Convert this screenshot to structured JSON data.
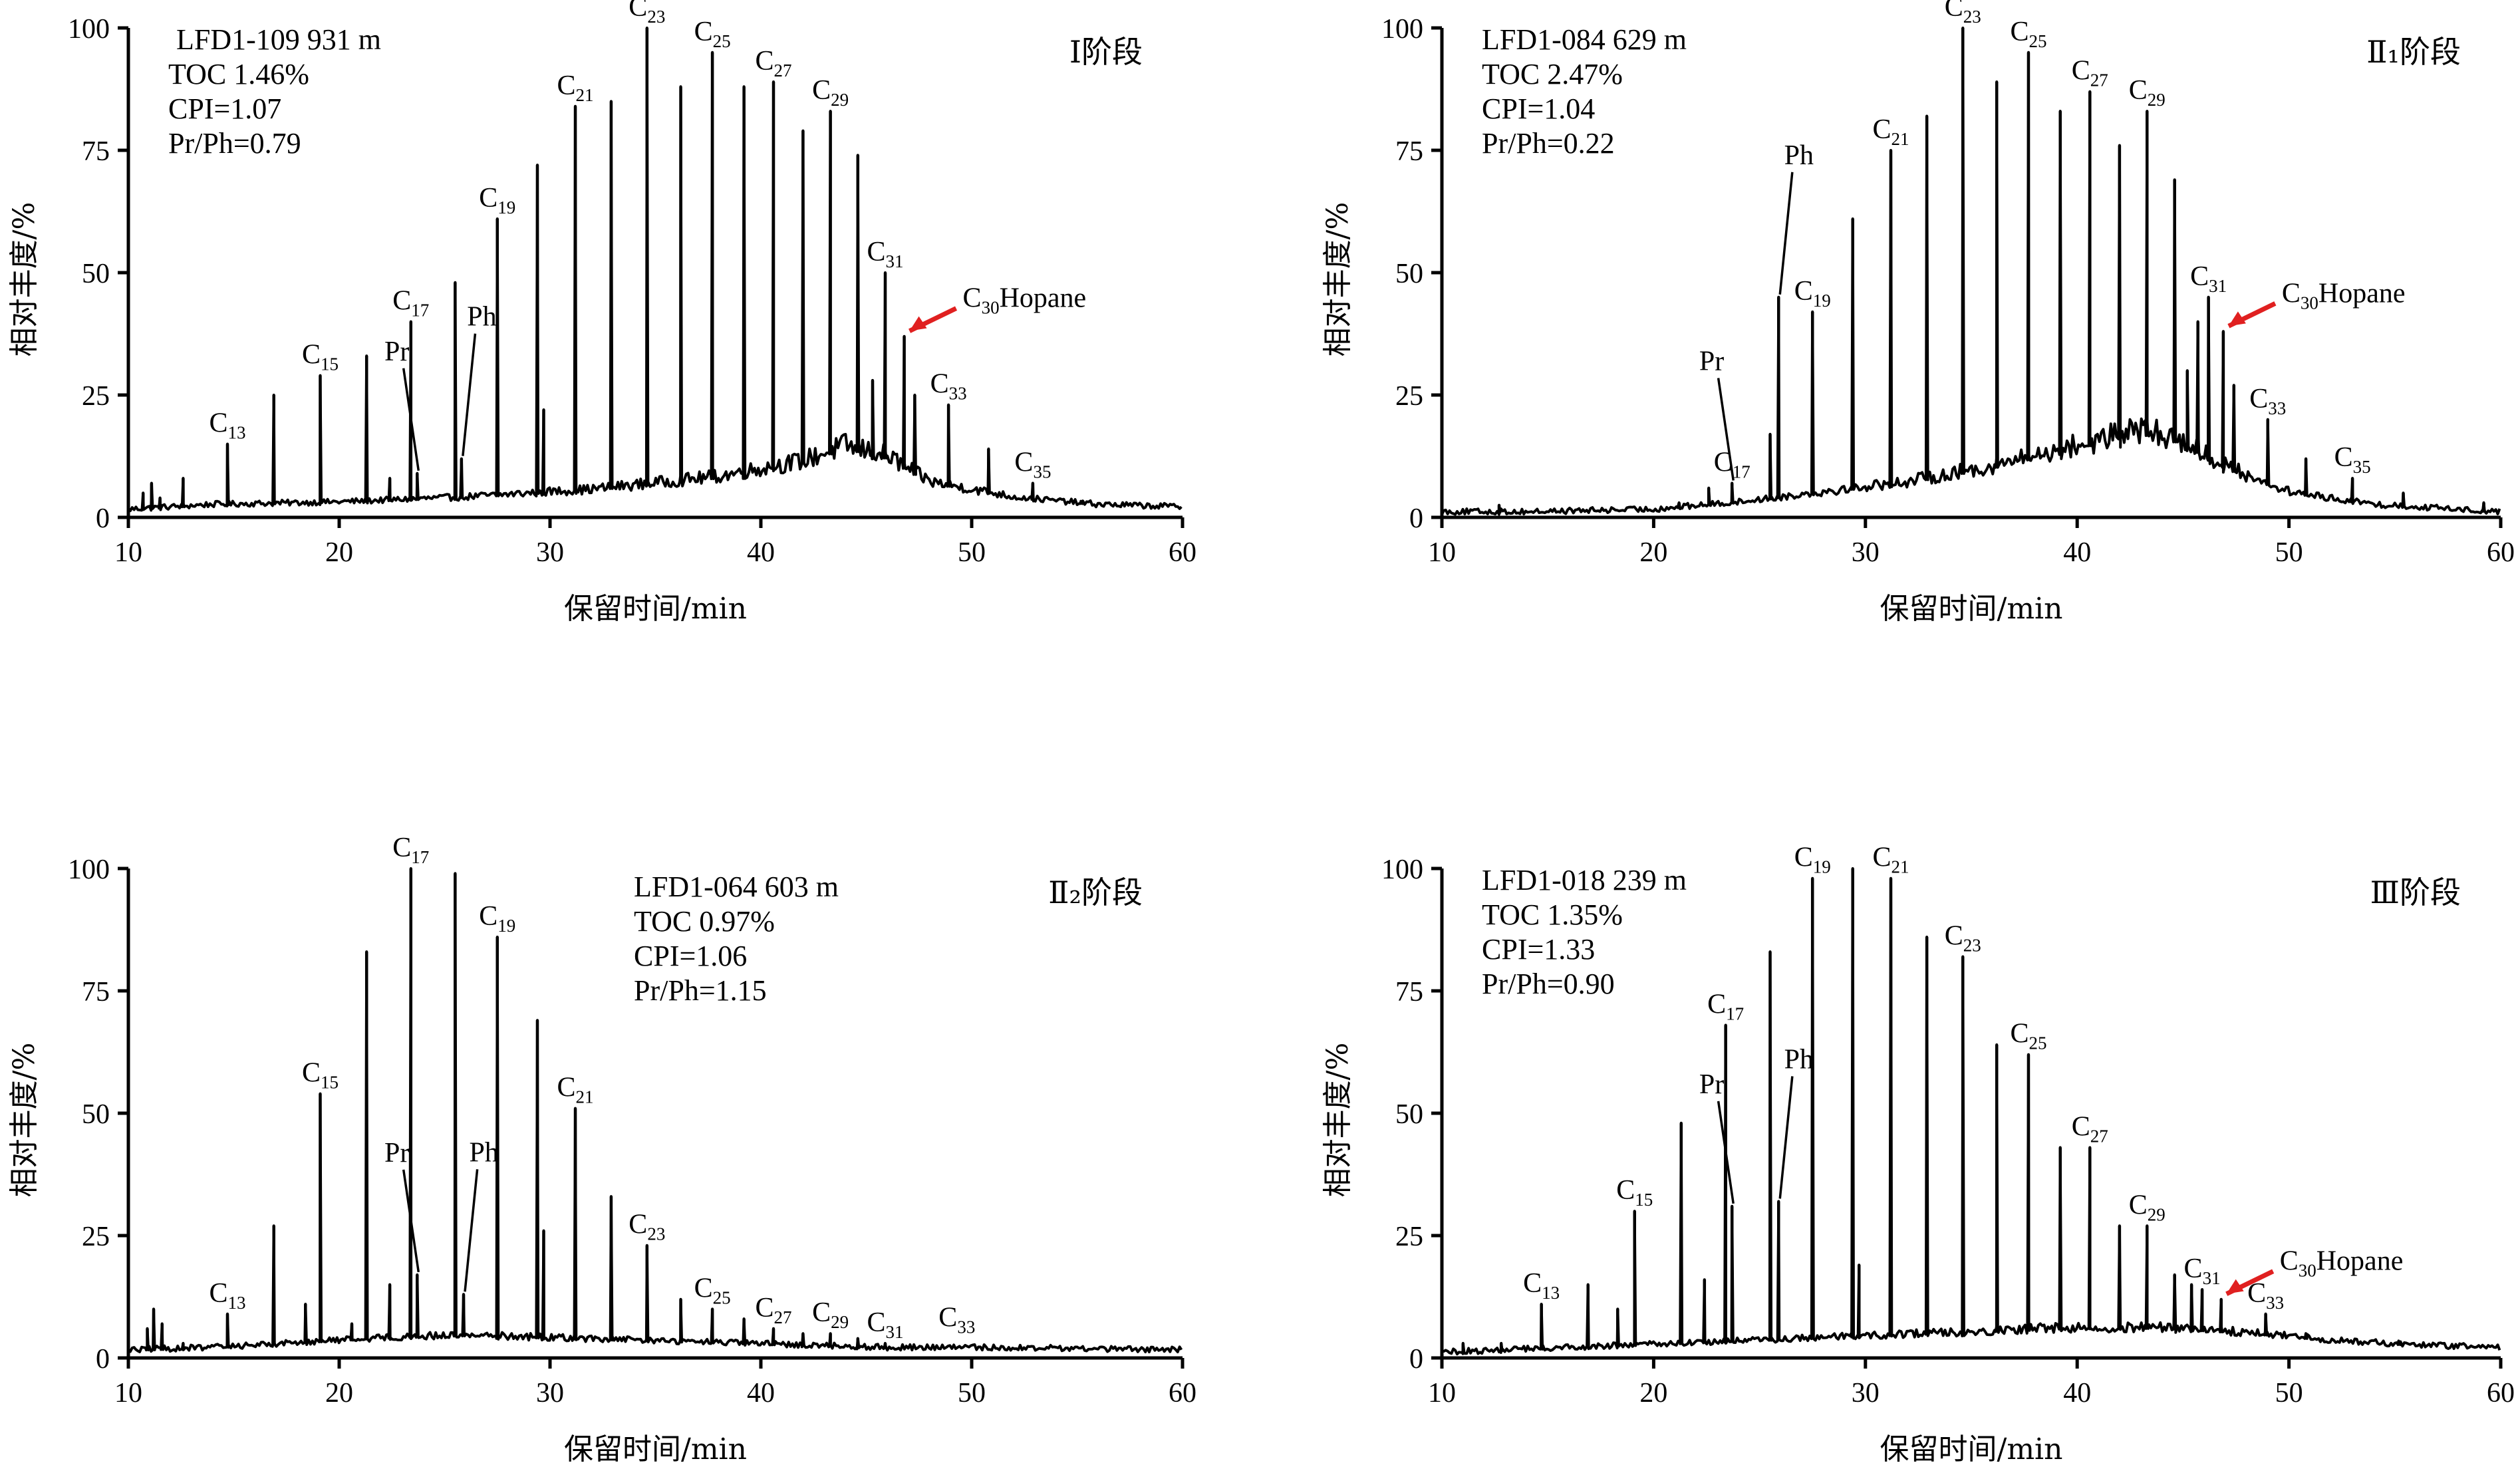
{
  "chart_data": [
    {
      "type": "line",
      "stage_label": "Ⅰ阶段",
      "info": [
        "LFD1-109  931 m",
        "TOC 1.46%",
        "CPI=1.07",
        "Pr/Ph=0.79"
      ],
      "xlabel": "保留时间/min",
      "ylabel": "相对丰度/%",
      "xlim": [
        10,
        60
      ],
      "ylim": [
        0,
        100
      ],
      "xticks": [
        10,
        20,
        30,
        40,
        50,
        60
      ],
      "yticks": [
        0,
        25,
        50,
        75,
        100
      ],
      "baseline": [
        [
          10,
          1.5
        ],
        [
          14,
          2.5
        ],
        [
          20,
          3
        ],
        [
          26,
          4
        ],
        [
          32,
          5.5
        ],
        [
          38,
          8
        ],
        [
          42,
          11
        ],
        [
          44,
          14
        ],
        [
          46,
          12
        ],
        [
          48,
          7
        ],
        [
          52,
          4
        ],
        [
          56,
          2.5
        ],
        [
          60,
          2
        ]
      ],
      "peaks": [
        [
          10.7,
          5
        ],
        [
          11.1,
          7
        ],
        [
          11.5,
          4
        ],
        [
          12.6,
          8
        ],
        [
          14.7,
          15
        ],
        [
          16.9,
          25
        ],
        [
          19.1,
          29
        ],
        [
          21.3,
          33
        ],
        [
          22.4,
          8
        ],
        [
          23.4,
          40
        ],
        [
          23.7,
          9
        ],
        [
          25.5,
          48
        ],
        [
          25.8,
          12
        ],
        [
          27.5,
          61
        ],
        [
          29.4,
          72
        ],
        [
          29.7,
          22
        ],
        [
          31.2,
          84
        ],
        [
          32.9,
          85
        ],
        [
          34.6,
          100
        ],
        [
          36.2,
          88
        ],
        [
          37.7,
          95
        ],
        [
          39.2,
          88
        ],
        [
          40.6,
          89
        ],
        [
          42.0,
          79
        ],
        [
          43.3,
          83
        ],
        [
          44.6,
          74
        ],
        [
          45.3,
          28
        ],
        [
          45.9,
          50
        ],
        [
          46.8,
          37
        ],
        [
          47.3,
          25
        ],
        [
          48.9,
          23
        ],
        [
          50.8,
          14
        ],
        [
          52.9,
          7
        ],
        [
          55.2,
          3
        ]
      ],
      "peak_labels": [
        {
          "name": "C",
          "sub": "13",
          "x": 14.7,
          "y": 15
        },
        {
          "name": "C",
          "sub": "15",
          "x": 19.1,
          "y": 29
        },
        {
          "name": "C",
          "sub": "17",
          "x": 23.4,
          "y": 40
        },
        {
          "name": "C",
          "sub": "19",
          "x": 27.5,
          "y": 61
        },
        {
          "name": "C",
          "sub": "21",
          "x": 31.2,
          "y": 84
        },
        {
          "name": "C",
          "sub": "23",
          "x": 34.6,
          "y": 100
        },
        {
          "name": "C",
          "sub": "25",
          "x": 37.7,
          "y": 95
        },
        {
          "name": "C",
          "sub": "27",
          "x": 40.6,
          "y": 89
        },
        {
          "name": "C",
          "sub": "29",
          "x": 43.3,
          "y": 83
        },
        {
          "name": "C",
          "sub": "31",
          "x": 45.9,
          "y": 50
        },
        {
          "name": "C",
          "sub": "33",
          "x": 48.9,
          "y": 23
        },
        {
          "name": "C",
          "sub": "35",
          "x": 52.9,
          "y": 7
        }
      ],
      "pr": {
        "label": "Pr",
        "x": 23.7,
        "y": 9
      },
      "ph": {
        "label": "Ph",
        "x": 25.8,
        "y": 12
      },
      "hopane": {
        "label": "Hopane",
        "sub": "30",
        "x": 46.8,
        "y": 37
      }
    },
    {
      "type": "line",
      "stage_label": "Ⅱ₁阶段",
      "info": [
        "LFD1-084  629 m",
        "TOC 2.47%",
        "CPI=1.04",
        "Pr/Ph=0.22"
      ],
      "xlabel": "保留时间/min",
      "ylabel": "相对丰度/%",
      "xlim": [
        10,
        60
      ],
      "ylim": [
        0,
        100
      ],
      "xticks": [
        10,
        20,
        30,
        40,
        50,
        60
      ],
      "yticks": [
        0,
        25,
        50,
        75,
        100
      ],
      "baseline": [
        [
          10,
          1
        ],
        [
          14,
          1
        ],
        [
          20,
          1.5
        ],
        [
          24,
          3
        ],
        [
          28,
          5
        ],
        [
          32,
          7
        ],
        [
          36,
          10
        ],
        [
          40,
          14
        ],
        [
          43,
          17
        ],
        [
          45,
          15
        ],
        [
          47,
          10
        ],
        [
          50,
          5
        ],
        [
          54,
          2.5
        ],
        [
          60,
          1
        ]
      ],
      "peaks": [
        [
          12.7,
          2.5
        ],
        [
          21.2,
          3
        ],
        [
          22.6,
          6
        ],
        [
          23.7,
          7
        ],
        [
          25.5,
          17
        ],
        [
          25.9,
          45
        ],
        [
          27.5,
          42
        ],
        [
          29.4,
          61
        ],
        [
          31.2,
          75
        ],
        [
          32.9,
          82
        ],
        [
          34.6,
          100
        ],
        [
          36.2,
          89
        ],
        [
          37.7,
          95
        ],
        [
          39.2,
          83
        ],
        [
          40.6,
          87
        ],
        [
          42.0,
          76
        ],
        [
          43.3,
          83
        ],
        [
          44.6,
          69
        ],
        [
          45.2,
          30
        ],
        [
          45.7,
          40
        ],
        [
          46.2,
          45
        ],
        [
          46.9,
          38
        ],
        [
          47.4,
          27
        ],
        [
          49.0,
          20
        ],
        [
          50.8,
          12
        ],
        [
          53.0,
          8
        ],
        [
          55.4,
          5
        ],
        [
          59.2,
          3
        ]
      ],
      "peak_labels": [
        {
          "name": "C",
          "sub": "17",
          "x": 23.7,
          "y": 7
        },
        {
          "name": "C",
          "sub": "19",
          "x": 27.5,
          "y": 42
        },
        {
          "name": "C",
          "sub": "21",
          "x": 31.2,
          "y": 75
        },
        {
          "name": "C",
          "sub": "23",
          "x": 34.6,
          "y": 100
        },
        {
          "name": "C",
          "sub": "25",
          "x": 37.7,
          "y": 95
        },
        {
          "name": "C",
          "sub": "27",
          "x": 40.6,
          "y": 87
        },
        {
          "name": "C",
          "sub": "29",
          "x": 43.3,
          "y": 83
        },
        {
          "name": "C",
          "sub": "31",
          "x": 46.2,
          "y": 45
        },
        {
          "name": "C",
          "sub": "33",
          "x": 49.0,
          "y": 20
        },
        {
          "name": "C",
          "sub": "35",
          "x": 53.0,
          "y": 8
        }
      ],
      "pr": {
        "label": "Pr",
        "x": 23.7,
        "y": 7
      },
      "ph": {
        "label": "Ph",
        "x": 25.9,
        "y": 45
      },
      "hopane": {
        "label": "Hopane",
        "sub": "30",
        "x": 46.9,
        "y": 38
      }
    },
    {
      "type": "line",
      "stage_label": "Ⅱ₂阶段",
      "info": [
        "LFD1-064  603 m",
        "TOC 0.97%",
        "CPI=1.06",
        "Pr/Ph=1.15"
      ],
      "xlabel": "保留时间/min",
      "ylabel": "相对丰度/%",
      "xlim": [
        10,
        60
      ],
      "ylim": [
        0,
        100
      ],
      "xticks": [
        10,
        20,
        30,
        40,
        50,
        60
      ],
      "yticks": [
        0,
        25,
        50,
        75,
        100
      ],
      "baseline": [
        [
          10,
          1.5
        ],
        [
          14,
          2
        ],
        [
          18,
          3
        ],
        [
          22,
          4
        ],
        [
          26,
          4.5
        ],
        [
          30,
          4
        ],
        [
          34,
          3.5
        ],
        [
          38,
          3
        ],
        [
          42,
          2.5
        ],
        [
          46,
          2
        ],
        [
          50,
          2
        ],
        [
          60,
          1.5
        ]
      ],
      "peaks": [
        [
          10.9,
          6
        ],
        [
          11.2,
          10
        ],
        [
          11.6,
          7
        ],
        [
          12.6,
          3
        ],
        [
          14.7,
          9
        ],
        [
          16.9,
          27
        ],
        [
          18.4,
          11
        ],
        [
          19.1,
          54
        ],
        [
          20.6,
          7
        ],
        [
          21.3,
          83
        ],
        [
          22.4,
          15
        ],
        [
          23.4,
          100
        ],
        [
          23.7,
          17
        ],
        [
          25.5,
          99
        ],
        [
          25.9,
          13
        ],
        [
          27.5,
          86
        ],
        [
          29.4,
          69
        ],
        [
          29.7,
          26
        ],
        [
          31.2,
          51
        ],
        [
          32.9,
          33
        ],
        [
          34.6,
          23
        ],
        [
          36.2,
          12
        ],
        [
          37.7,
          10
        ],
        [
          39.2,
          8
        ],
        [
          40.6,
          6
        ],
        [
          42.0,
          5
        ],
        [
          43.3,
          5
        ],
        [
          44.6,
          4
        ],
        [
          45.9,
          3
        ]
      ],
      "peak_labels": [
        {
          "name": "C",
          "sub": "13",
          "x": 14.7,
          "y": 9
        },
        {
          "name": "C",
          "sub": "15",
          "x": 19.1,
          "y": 54
        },
        {
          "name": "C",
          "sub": "17",
          "x": 23.4,
          "y": 100
        },
        {
          "name": "C",
          "sub": "19",
          "x": 27.5,
          "y": 86
        },
        {
          "name": "C",
          "sub": "21",
          "x": 31.2,
          "y": 51
        },
        {
          "name": "C",
          "sub": "23",
          "x": 34.6,
          "y": 23
        },
        {
          "name": "C",
          "sub": "25",
          "x": 37.7,
          "y": 10
        },
        {
          "name": "C",
          "sub": "27",
          "x": 40.6,
          "y": 6
        },
        {
          "name": "C",
          "sub": "29",
          "x": 43.3,
          "y": 5
        },
        {
          "name": "C",
          "sub": "31",
          "x": 45.9,
          "y": 3
        },
        {
          "name": "C",
          "sub": "33",
          "x": 49.3,
          "y": 4
        }
      ],
      "pr": {
        "label": "Pr",
        "x": 23.7,
        "y": 17
      },
      "ph": {
        "label": "Ph",
        "x": 25.9,
        "y": 13
      }
    },
    {
      "type": "line",
      "stage_label": "Ⅲ阶段",
      "info": [
        "LFD1-018  239 m",
        "TOC 1.35%",
        "CPI=1.33",
        "Pr/Ph=0.90"
      ],
      "xlabel": "保留时间/min",
      "ylabel": "相对丰度/%",
      "xlim": [
        10,
        60
      ],
      "ylim": [
        0,
        100
      ],
      "xticks": [
        10,
        20,
        30,
        40,
        50,
        60
      ],
      "yticks": [
        0,
        25,
        50,
        75,
        100
      ],
      "baseline": [
        [
          10,
          1
        ],
        [
          16,
          2
        ],
        [
          22,
          3
        ],
        [
          28,
          4
        ],
        [
          34,
          5
        ],
        [
          40,
          6
        ],
        [
          44,
          6
        ],
        [
          48,
          5
        ],
        [
          52,
          3.5
        ],
        [
          56,
          2.5
        ],
        [
          60,
          2
        ]
      ],
      "peaks": [
        [
          11.0,
          3
        ],
        [
          12.8,
          3
        ],
        [
          14.7,
          11
        ],
        [
          16.9,
          15
        ],
        [
          18.3,
          10
        ],
        [
          19.1,
          30
        ],
        [
          21.3,
          48
        ],
        [
          22.4,
          16
        ],
        [
          23.4,
          68
        ],
        [
          23.7,
          31
        ],
        [
          25.5,
          83
        ],
        [
          25.9,
          32
        ],
        [
          27.5,
          98
        ],
        [
          29.4,
          100
        ],
        [
          29.7,
          19
        ],
        [
          31.2,
          98
        ],
        [
          32.9,
          86
        ],
        [
          34.6,
          82
        ],
        [
          36.2,
          64
        ],
        [
          37.7,
          62
        ],
        [
          39.2,
          43
        ],
        [
          40.6,
          43
        ],
        [
          42.0,
          27
        ],
        [
          43.3,
          27
        ],
        [
          44.6,
          17
        ],
        [
          45.4,
          15
        ],
        [
          45.9,
          14
        ],
        [
          46.8,
          12
        ],
        [
          48.9,
          9
        ],
        [
          50.8,
          5
        ],
        [
          55.2,
          3
        ]
      ],
      "peak_labels": [
        {
          "name": "C",
          "sub": "13",
          "x": 14.7,
          "y": 11
        },
        {
          "name": "C",
          "sub": "15",
          "x": 19.1,
          "y": 30
        },
        {
          "name": "C",
          "sub": "17",
          "x": 23.4,
          "y": 68
        },
        {
          "name": "C",
          "sub": "19",
          "x": 27.5,
          "y": 98
        },
        {
          "name": "C",
          "sub": "21",
          "x": 31.2,
          "y": 98
        },
        {
          "name": "C",
          "sub": "23",
          "x": 34.6,
          "y": 82
        },
        {
          "name": "C",
          "sub": "25",
          "x": 37.7,
          "y": 62
        },
        {
          "name": "C",
          "sub": "27",
          "x": 40.6,
          "y": 43
        },
        {
          "name": "C",
          "sub": "29",
          "x": 43.3,
          "y": 27
        },
        {
          "name": "C",
          "sub": "31",
          "x": 45.9,
          "y": 14
        },
        {
          "name": "C",
          "sub": "33",
          "x": 48.9,
          "y": 9
        }
      ],
      "pr": {
        "label": "Pr",
        "x": 23.7,
        "y": 31
      },
      "ph": {
        "label": "Ph",
        "x": 25.9,
        "y": 32
      },
      "hopane": {
        "label": "Hopane",
        "sub": "30",
        "x": 46.8,
        "y": 12
      }
    }
  ]
}
